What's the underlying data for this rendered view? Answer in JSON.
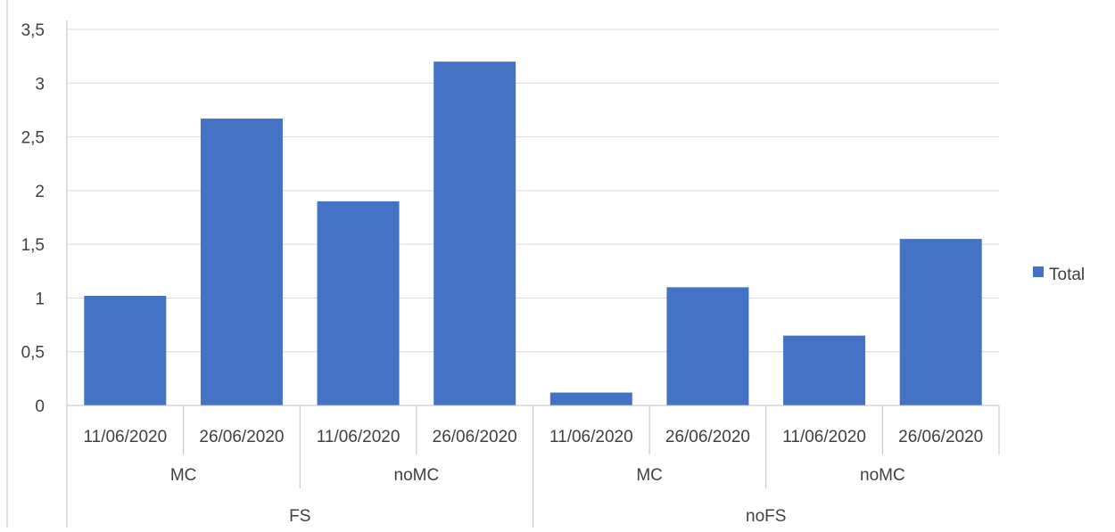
{
  "chart_data": {
    "type": "bar",
    "categories": [
      {
        "date": "11/06/2020",
        "group": "MC",
        "outer": "FS"
      },
      {
        "date": "26/06/2020",
        "group": "MC",
        "outer": "FS"
      },
      {
        "date": "11/06/2020",
        "group": "noMC",
        "outer": "FS"
      },
      {
        "date": "26/06/2020",
        "group": "noMC",
        "outer": "FS"
      },
      {
        "date": "11/06/2020",
        "group": "MC",
        "outer": "noFS"
      },
      {
        "date": "26/06/2020",
        "group": "MC",
        "outer": "noFS"
      },
      {
        "date": "11/06/2020",
        "group": "noMC",
        "outer": "noFS"
      },
      {
        "date": "26/06/2020",
        "group": "noMC",
        "outer": "noFS"
      }
    ],
    "series": [
      {
        "name": "Total",
        "color": "#4472C4",
        "values": [
          1.02,
          2.67,
          1.9,
          3.2,
          0.12,
          1.1,
          0.65,
          1.55
        ]
      }
    ],
    "group_labels": [
      {
        "label": "MC",
        "span": [
          0,
          1
        ]
      },
      {
        "label": "noMC",
        "span": [
          2,
          3
        ]
      },
      {
        "label": "MC",
        "span": [
          4,
          5
        ]
      },
      {
        "label": "noMC",
        "span": [
          6,
          7
        ]
      }
    ],
    "outer_labels": [
      {
        "label": "FS",
        "span": [
          0,
          3
        ]
      },
      {
        "label": "noFS",
        "span": [
          4,
          7
        ]
      }
    ],
    "yticks": [
      "0",
      "0,5",
      "1",
      "1,5",
      "2",
      "2,5",
      "3",
      "3,5"
    ],
    "ylim": [
      0,
      3.5
    ],
    "grid": true,
    "legend_position": "right",
    "title": "",
    "xlabel": "",
    "ylabel": ""
  }
}
